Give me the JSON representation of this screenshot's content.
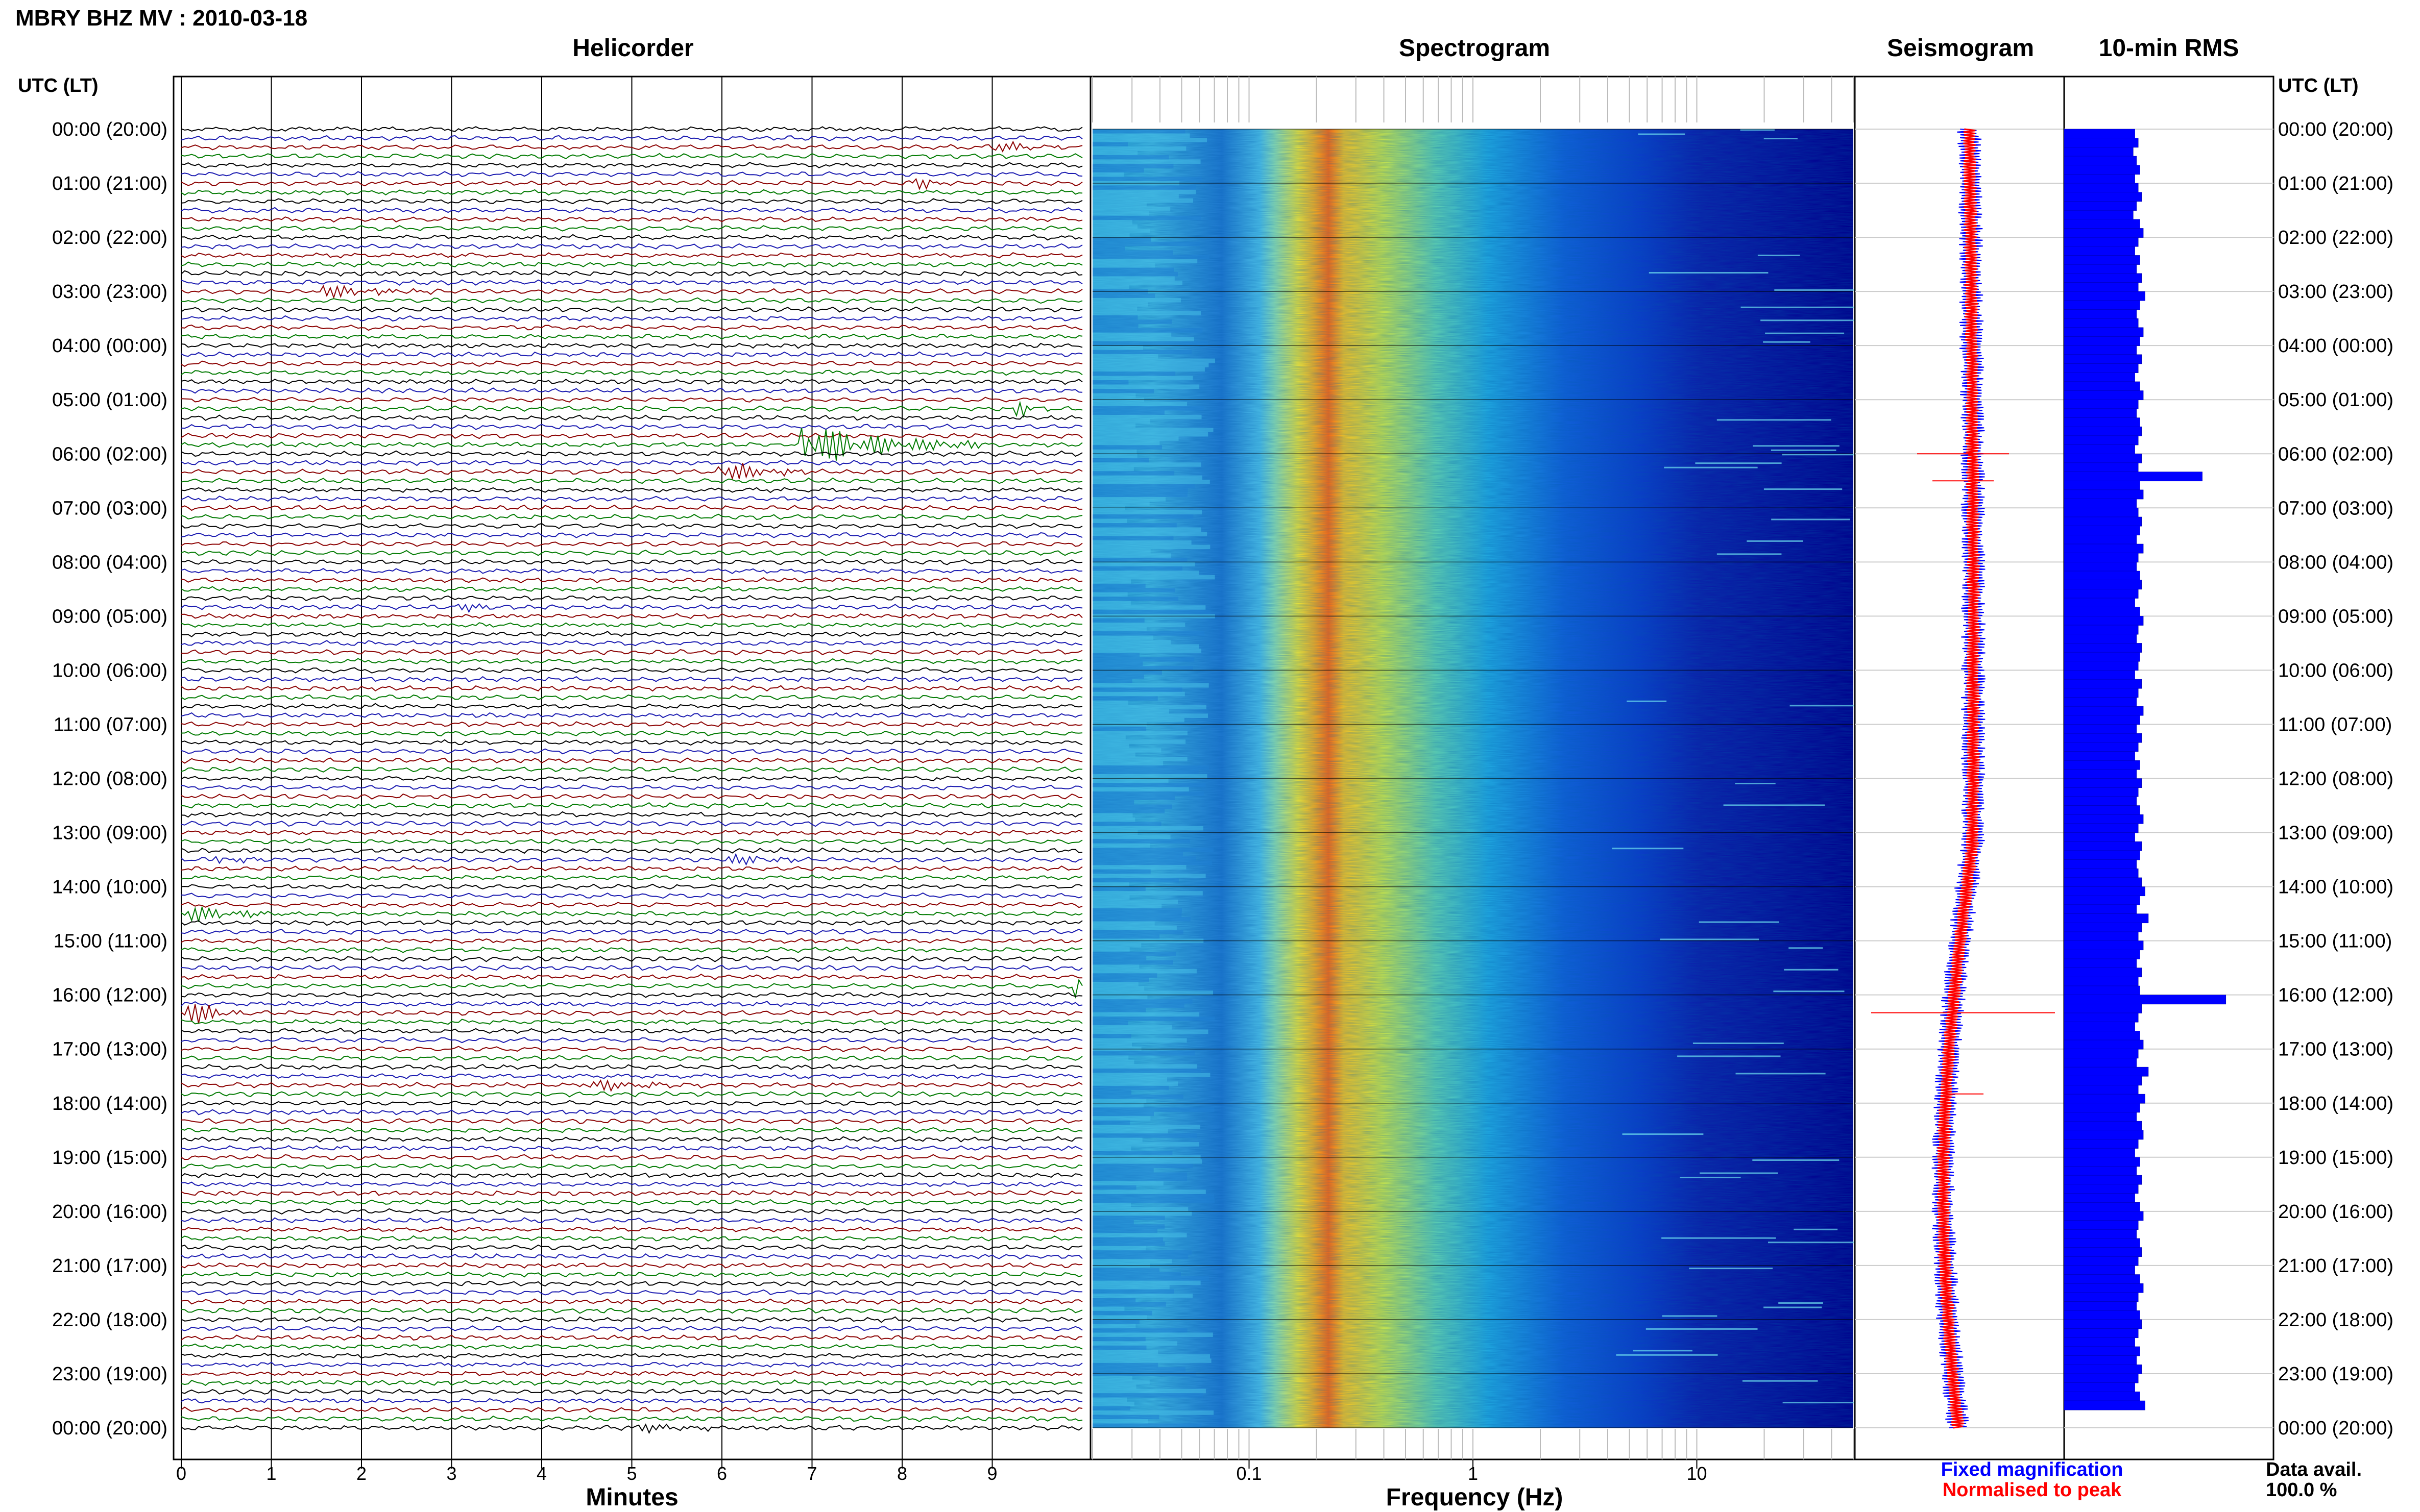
{
  "header": {
    "station_title": "MBRY BHZ MV : 2010-03-18"
  },
  "panels": {
    "helicorder": "Helicorder",
    "spectrogram": "Spectrogram",
    "seismogram": "Seismogram",
    "rms": "10-min RMS"
  },
  "axes": {
    "left_corner": "UTC (LT)",
    "right_corner": "UTC (LT)",
    "minutes_label": "Minutes",
    "frequency_label": "Frequency (Hz)"
  },
  "legend": {
    "fixed": "Fixed magnification",
    "normalised": "Normalised to peak",
    "fixed_color": "#0000ff",
    "normalised_color": "#ff0000"
  },
  "data_avail": {
    "label": "Data avail.",
    "value": "100.0 %"
  },
  "colors": {
    "trace_colors": [
      "#000000",
      "#1a1ab0",
      "#8b0000",
      "#007a00"
    ],
    "rms_bar": "#0000ff",
    "spectrogram_low": "#00008b",
    "spectrogram_high": "#ff2000"
  },
  "chart_data": [
    {
      "type": "line",
      "name": "helicorder",
      "x_label": "Minutes",
      "x_range": [
        0,
        10
      ],
      "x_ticks": [
        "0",
        "1",
        "2",
        "3",
        "4",
        "5",
        "6",
        "7",
        "8",
        "9"
      ],
      "time_labels": [
        "00:00 (20:00)",
        "01:00 (21:00)",
        "02:00 (22:00)",
        "03:00 (23:00)",
        "04:00 (00:00)",
        "05:00 (01:00)",
        "06:00 (02:00)",
        "07:00 (03:00)",
        "08:00 (04:00)",
        "09:00 (05:00)",
        "10:00 (06:00)",
        "11:00 (07:00)",
        "12:00 (08:00)",
        "13:00 (09:00)",
        "14:00 (10:00)",
        "15:00 (11:00)",
        "16:00 (12:00)",
        "17:00 (13:00)",
        "18:00 (14:00)",
        "19:00 (15:00)",
        "20:00 (16:00)",
        "21:00 (17:00)",
        "22:00 (18:00)",
        "23:00 (19:00)",
        "00:00 (20:00)"
      ],
      "lines_per_hour": 6,
      "events": [
        {
          "hour": 0.33,
          "minute": 9.0,
          "amp": 0.6,
          "dur": 0.8
        },
        {
          "hour": 1.0,
          "minute": 8.2,
          "amp": 0.5,
          "dur": 0.3
        },
        {
          "hour": 3.0,
          "minute": 1.5,
          "amp": 0.7,
          "dur": 1.3
        },
        {
          "hour": 5.17,
          "minute": 9.3,
          "amp": 0.7,
          "dur": 0.4
        },
        {
          "hour": 5.83,
          "minute": 6.9,
          "amp": 2.0,
          "dur": 2.0
        },
        {
          "hour": 6.33,
          "minute": 6.0,
          "amp": 1.0,
          "dur": 1.0
        },
        {
          "hour": 8.83,
          "minute": 3.0,
          "amp": 0.5,
          "dur": 0.7
        },
        {
          "hour": 13.5,
          "minute": 0.4,
          "amp": 0.5,
          "dur": 0.6
        },
        {
          "hour": 13.5,
          "minute": 6.0,
          "amp": 0.6,
          "dur": 1.0
        },
        {
          "hour": 14.5,
          "minute": 0.0,
          "amp": 0.9,
          "dur": 1.2
        },
        {
          "hour": 15.83,
          "minute": 9.95,
          "amp": 2.2,
          "dur": 0.1
        },
        {
          "hour": 16.33,
          "minute": 0.0,
          "amp": 1.6,
          "dur": 0.7
        },
        {
          "hour": 17.67,
          "minute": 4.5,
          "amp": 0.6,
          "dur": 1.3
        },
        {
          "hour": 24.0,
          "minute": 5.0,
          "amp": 0.5,
          "dur": 1.0
        }
      ]
    },
    {
      "type": "heatmap",
      "name": "spectrogram",
      "x_label": "Frequency (Hz)",
      "x_scale": "log",
      "x_range": [
        0.02,
        50
      ],
      "x_ticks": [
        "0.1",
        "1",
        "10"
      ],
      "peak_frequency_hz": 0.25
    },
    {
      "type": "line",
      "name": "seismogram",
      "series": [
        {
          "name": "Fixed magnification",
          "color": "#0000ff"
        },
        {
          "name": "Normalised to peak",
          "color": "#ff0000"
        }
      ],
      "spikes_hours": [
        6.0,
        6.5,
        16.33,
        17.83
      ]
    },
    {
      "type": "bar",
      "name": "10-min RMS",
      "orientation": "horizontal",
      "bins_per_hour": 6,
      "relative_values": [
        0.42,
        0.44,
        0.41,
        0.43,
        0.45,
        0.42,
        0.44,
        0.46,
        0.43,
        0.41,
        0.45,
        0.47,
        0.44,
        0.42,
        0.45,
        0.43,
        0.46,
        0.44,
        0.48,
        0.45,
        0.43,
        0.44,
        0.47,
        0.45,
        0.43,
        0.46,
        0.44,
        0.42,
        0.45,
        0.47,
        0.44,
        0.43,
        0.45,
        0.46,
        0.44,
        0.42,
        0.46,
        0.44,
        0.82,
        0.45,
        0.47,
        0.43,
        0.44,
        0.46,
        0.45,
        0.43,
        0.47,
        0.44,
        0.43,
        0.45,
        0.46,
        0.44,
        0.42,
        0.45,
        0.47,
        0.44,
        0.43,
        0.46,
        0.45,
        0.44,
        0.42,
        0.46,
        0.44,
        0.43,
        0.47,
        0.45,
        0.43,
        0.46,
        0.44,
        0.42,
        0.45,
        0.43,
        0.46,
        0.44,
        0.43,
        0.45,
        0.47,
        0.44,
        0.42,
        0.46,
        0.45,
        0.43,
        0.44,
        0.46,
        0.48,
        0.45,
        0.43,
        0.5,
        0.46,
        0.44,
        0.47,
        0.45,
        0.43,
        0.46,
        0.44,
        0.45,
        0.96,
        0.46,
        0.44,
        0.42,
        0.45,
        0.47,
        0.44,
        0.43,
        0.5,
        0.46,
        0.44,
        0.48,
        0.45,
        0.43,
        0.46,
        0.47,
        0.44,
        0.42,
        0.45,
        0.43,
        0.46,
        0.44,
        0.42,
        0.45,
        0.47,
        0.44,
        0.43,
        0.45,
        0.46,
        0.44,
        0.42,
        0.45,
        0.47,
        0.44,
        0.43,
        0.45,
        0.46,
        0.44,
        0.42,
        0.45,
        0.43,
        0.46,
        0.44,
        0.42,
        0.45,
        0.48
      ]
    }
  ]
}
